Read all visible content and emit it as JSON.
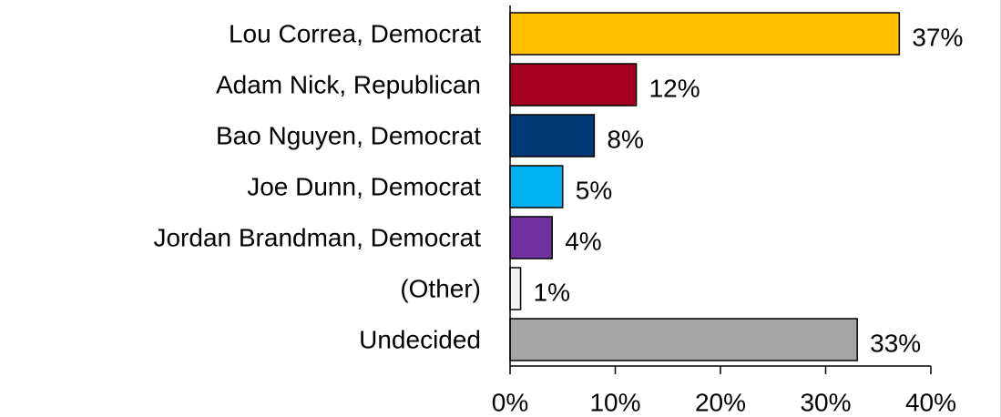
{
  "chart_data": {
    "type": "bar",
    "orientation": "horizontal",
    "title": "",
    "xlabel": "",
    "ylabel": "",
    "xlim": [
      0,
      40
    ],
    "x_ticks": [
      "0%",
      "10%",
      "20%",
      "30%",
      "40%"
    ],
    "x_tick_values": [
      0,
      10,
      20,
      30,
      40
    ],
    "grid": false,
    "legend": "none",
    "categories": [
      "Lou Correa, Democrat",
      "Adam Nick, Republican",
      "Bao Nguyen, Democrat",
      "Joe Dunn, Democrat",
      "Jordan Brandman, Democrat",
      "(Other)",
      "Undecided"
    ],
    "values": [
      37,
      12,
      8,
      5,
      4,
      1,
      33
    ],
    "value_labels": [
      "37%",
      "12%",
      "8%",
      "5%",
      "4%",
      "1%",
      "33%"
    ],
    "colors": [
      "#FFC000",
      "#A50021",
      "#003B78",
      "#00B0F0",
      "#7030A0",
      "#F2F2F2",
      "#A6A6A6"
    ]
  }
}
